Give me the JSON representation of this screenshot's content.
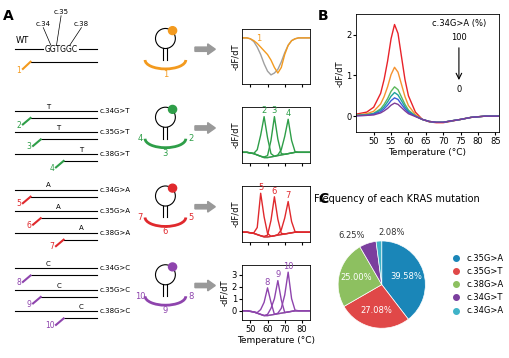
{
  "panel_labels": [
    "A",
    "B",
    "C"
  ],
  "diagram": {
    "wt": {
      "label": "WT",
      "positions": [
        "c.34",
        "c.35",
        "c.38"
      ],
      "sequence": "GGTGGC",
      "probe": "1",
      "color": "#f39a1e",
      "hairpin_labels": [
        "1"
      ]
    },
    "groups": [
      {
        "color": "#2e9e48",
        "base": "T",
        "rows": [
          {
            "label": "c.34G>T",
            "probe": "2"
          },
          {
            "label": "c.35G>T",
            "probe": "3"
          },
          {
            "label": "c.38G>T",
            "probe": "4"
          }
        ],
        "hairpin_labels": [
          "4",
          "3",
          "2"
        ]
      },
      {
        "color": "#e0292d",
        "base": "A",
        "rows": [
          {
            "label": "c.34G>A",
            "probe": "5"
          },
          {
            "label": "c.35G>A",
            "probe": "6"
          },
          {
            "label": "c.38G>A",
            "probe": "7"
          }
        ],
        "hairpin_labels": [
          "7",
          "6",
          "5"
        ]
      },
      {
        "color": "#8e44ad",
        "base": "C",
        "rows": [
          {
            "label": "c.34G>C",
            "probe": "8"
          },
          {
            "label": "c.35G>C",
            "probe": "9"
          },
          {
            "label": "c.38G>C",
            "probe": "10"
          }
        ],
        "hairpin_labels": [
          "10",
          "9",
          "8"
        ]
      }
    ]
  },
  "chart_data": [
    {
      "type": "line",
      "x": [
        45,
        48,
        50,
        52,
        54,
        56,
        58,
        60,
        62,
        64,
        66,
        68,
        70,
        72,
        74,
        76,
        78,
        80,
        82,
        85
      ],
      "xlim": [
        45,
        85
      ],
      "ylim": [
        -2.5,
        0.5
      ],
      "xticks": [
        50,
        60,
        70,
        80
      ],
      "ylabel": "-dF/dT",
      "tick_labels": false,
      "series": [
        {
          "color": "#a0a0a0",
          "values": [
            0,
            0,
            -0.05,
            -0.2,
            -0.5,
            -0.9,
            -1.4,
            -1.8,
            -2.0,
            -1.9,
            -1.7,
            -1.3,
            -0.8,
            -0.4,
            -0.15,
            -0.05,
            0,
            0,
            0,
            0
          ]
        },
        {
          "color": "#f39a1e",
          "values": [
            0,
            0,
            -0.05,
            -0.15,
            -0.3,
            -0.5,
            -0.7,
            -0.9,
            -1.2,
            -1.6,
            -1.9,
            -1.6,
            -0.9,
            -0.4,
            -0.15,
            -0.05,
            0,
            0,
            0,
            0
          ]
        }
      ],
      "annotations": [
        {
          "text": "1",
          "x": 55,
          "y": -0.3,
          "color": "#f39a1e"
        }
      ]
    },
    {
      "type": "line",
      "x": [
        45,
        48,
        50,
        52,
        54,
        56,
        58,
        60,
        62,
        64,
        66,
        68,
        70,
        72,
        74,
        76,
        78,
        80,
        82,
        85
      ],
      "xlim": [
        45,
        85
      ],
      "ylim": [
        -0.8,
        3.4
      ],
      "xticks": [
        50,
        60,
        70,
        80
      ],
      "ylabel": "-dF/dT",
      "tick_labels": false,
      "series": [
        {
          "color": "#a0a0a0",
          "values": [
            0,
            0,
            -0.05,
            -0.1,
            -0.2,
            -0.3,
            -0.4,
            -0.4,
            -0.35,
            -0.3,
            -0.25,
            -0.2,
            -0.15,
            -0.1,
            -0.05,
            0,
            0,
            0,
            0,
            0
          ]
        },
        {
          "color": "#2e9e48",
          "values": [
            0,
            0,
            -0.05,
            -0.08,
            0.2,
            1.3,
            2.7,
            1.1,
            -0.1,
            -0.3,
            -0.25,
            -0.2,
            -0.15,
            -0.1,
            -0.05,
            0,
            0,
            0,
            0,
            0
          ]
        },
        {
          "color": "#2e9e48",
          "values": [
            0,
            0,
            -0.05,
            -0.1,
            -0.2,
            -0.3,
            -0.35,
            -0.25,
            0.9,
            2.7,
            1.0,
            -0.1,
            -0.15,
            -0.1,
            -0.05,
            0,
            0,
            0,
            0,
            0
          ]
        },
        {
          "color": "#2e9e48",
          "values": [
            0,
            0,
            -0.05,
            -0.1,
            -0.2,
            -0.3,
            -0.4,
            -0.4,
            -0.35,
            -0.3,
            -0.2,
            0.2,
            1.2,
            2.5,
            0.9,
            0.05,
            0,
            0,
            0,
            0
          ]
        }
      ],
      "annotations": [
        {
          "text": "2",
          "x": 58,
          "y": 2.8,
          "color": "#2e9e48"
        },
        {
          "text": "3",
          "x": 64,
          "y": 2.8,
          "color": "#2e9e48"
        },
        {
          "text": "4",
          "x": 72,
          "y": 2.6,
          "color": "#2e9e48"
        }
      ]
    },
    {
      "type": "line",
      "x": [
        45,
        48,
        50,
        52,
        54,
        56,
        58,
        60,
        62,
        64,
        66,
        68,
        70,
        72,
        74,
        76,
        78,
        80,
        82,
        85
      ],
      "xlim": [
        45,
        85
      ],
      "ylim": [
        -0.8,
        3.9
      ],
      "xticks": [
        50,
        60,
        70,
        80
      ],
      "ylabel": "-dF/dT",
      "tick_labels": false,
      "series": [
        {
          "color": "#a0a0a0",
          "values": [
            0,
            0,
            -0.05,
            -0.1,
            -0.2,
            -0.3,
            -0.4,
            -0.4,
            -0.35,
            -0.3,
            -0.25,
            -0.2,
            -0.15,
            -0.1,
            -0.05,
            0,
            0,
            0,
            0,
            0
          ]
        },
        {
          "color": "#e0292d",
          "values": [
            0,
            0,
            -0.05,
            -0.05,
            0.4,
            3.3,
            1.3,
            -0.1,
            -0.35,
            -0.3,
            -0.25,
            -0.2,
            -0.15,
            -0.1,
            -0.05,
            0,
            0,
            0,
            0,
            0
          ]
        },
        {
          "color": "#e0292d",
          "values": [
            0,
            0,
            -0.05,
            -0.1,
            -0.2,
            -0.3,
            -0.35,
            -0.25,
            1.0,
            3.0,
            1.1,
            -0.1,
            -0.15,
            -0.1,
            -0.05,
            0,
            0,
            0,
            0,
            0
          ]
        },
        {
          "color": "#e0292d",
          "values": [
            0,
            0,
            -0.05,
            -0.1,
            -0.2,
            -0.3,
            -0.4,
            -0.4,
            -0.35,
            -0.3,
            -0.2,
            0.2,
            1.2,
            2.6,
            0.9,
            0.05,
            0,
            0,
            0,
            0
          ]
        }
      ],
      "annotations": [
        {
          "text": "5",
          "x": 56,
          "y": 3.4,
          "color": "#e0292d"
        },
        {
          "text": "6",
          "x": 64,
          "y": 3.1,
          "color": "#e0292d"
        },
        {
          "text": "7",
          "x": 72,
          "y": 2.7,
          "color": "#e0292d"
        }
      ]
    },
    {
      "type": "line",
      "x": [
        45,
        48,
        50,
        52,
        54,
        56,
        58,
        60,
        62,
        64,
        66,
        68,
        70,
        72,
        74,
        76,
        78,
        80,
        82,
        85
      ],
      "xlim": [
        45,
        85
      ],
      "ylim": [
        -0.8,
        3.8
      ],
      "xticks": [
        50,
        60,
        70,
        80
      ],
      "yticks": [
        0,
        1,
        2,
        3
      ],
      "xlabel": "Temperature (°C)",
      "ylabel": "-dF/dT",
      "tick_labels": true,
      "series": [
        {
          "color": "#a0a0a0",
          "values": [
            0,
            0,
            -0.05,
            -0.1,
            -0.2,
            -0.3,
            -0.4,
            -0.4,
            -0.35,
            -0.3,
            -0.25,
            -0.2,
            -0.15,
            -0.1,
            -0.05,
            0,
            0,
            0,
            0,
            0
          ]
        },
        {
          "color": "#8e44ad",
          "values": [
            0,
            0,
            -0.05,
            -0.1,
            -0.15,
            0.1,
            0.7,
            1.9,
            0.7,
            -0.3,
            -0.25,
            -0.2,
            -0.15,
            -0.1,
            -0.05,
            0,
            0,
            0,
            0,
            0
          ]
        },
        {
          "color": "#8e44ad",
          "values": [
            0,
            0,
            -0.05,
            -0.1,
            -0.2,
            -0.3,
            -0.4,
            -0.3,
            0.2,
            1.0,
            2.5,
            0.9,
            -0.15,
            -0.1,
            -0.05,
            0,
            0,
            0,
            0,
            0
          ]
        },
        {
          "color": "#8e44ad",
          "values": [
            0,
            0,
            -0.05,
            -0.1,
            -0.2,
            -0.3,
            -0.4,
            -0.4,
            -0.35,
            -0.3,
            -0.2,
            0.2,
            1.3,
            3.2,
            1.0,
            0.05,
            0,
            0,
            0,
            0
          ]
        }
      ],
      "annotations": [
        {
          "text": "8",
          "x": 60,
          "y": 2.0,
          "color": "#8e44ad"
        },
        {
          "text": "9",
          "x": 66,
          "y": 2.6,
          "color": "#8e44ad"
        },
        {
          "text": "10",
          "x": 72,
          "y": 3.3,
          "color": "#8e44ad"
        }
      ]
    },
    {
      "type": "line",
      "x": [
        45,
        48,
        50,
        52,
        53,
        54,
        55,
        56,
        57,
        58,
        59,
        60,
        62,
        64,
        66,
        68,
        70,
        72,
        75,
        78,
        82,
        86
      ],
      "xlim": [
        45,
        86
      ],
      "ylim": [
        -0.4,
        2.5
      ],
      "xticks": [
        50,
        55,
        60,
        65,
        70,
        75,
        80,
        85
      ],
      "yticks": [
        0,
        1,
        2
      ],
      "xlabel": "Temperature (°C)",
      "ylabel": "-dF/dT",
      "key": {
        "title": "c.34G>A (%)",
        "from": "100",
        "to": "0"
      },
      "series": [
        {
          "color": "#e8232a",
          "values": [
            0.05,
            0.1,
            0.22,
            0.56,
            0.9,
            1.35,
            1.9,
            2.25,
            2.03,
            1.46,
            0.9,
            0.5,
            0.1,
            -0.08,
            -0.14,
            -0.16,
            -0.16,
            -0.13,
            -0.08,
            -0.03,
            0,
            0
          ]
        },
        {
          "color": "#f5922f",
          "values": [
            0.03,
            0.06,
            0.12,
            0.3,
            0.48,
            0.72,
            1.02,
            1.2,
            1.08,
            0.78,
            0.48,
            0.26,
            0.04,
            -0.08,
            -0.13,
            -0.15,
            -0.15,
            -0.12,
            -0.08,
            -0.03,
            0,
            0
          ]
        },
        {
          "color": "#5cb85c",
          "values": [
            0.02,
            0.04,
            0.07,
            0.18,
            0.29,
            0.43,
            0.61,
            0.72,
            0.65,
            0.47,
            0.29,
            0.15,
            0.01,
            -0.08,
            -0.13,
            -0.15,
            -0.15,
            -0.12,
            -0.08,
            -0.03,
            0,
            0
          ]
        },
        {
          "color": "#20a39e",
          "values": [
            0.02,
            0.03,
            0.06,
            0.15,
            0.23,
            0.35,
            0.49,
            0.58,
            0.52,
            0.38,
            0.23,
            0.12,
            0.0,
            -0.08,
            -0.13,
            -0.15,
            -0.15,
            -0.12,
            -0.08,
            -0.03,
            0,
            0
          ]
        },
        {
          "color": "#3b5bdb",
          "values": [
            0.01,
            0.02,
            0.05,
            0.11,
            0.18,
            0.27,
            0.38,
            0.45,
            0.41,
            0.29,
            0.18,
            0.09,
            0.0,
            -0.08,
            -0.13,
            -0.15,
            -0.15,
            -0.12,
            -0.08,
            -0.03,
            0,
            0
          ]
        },
        {
          "color": "#7d3c98",
          "values": [
            0.01,
            0.02,
            0.03,
            0.08,
            0.13,
            0.19,
            0.27,
            0.32,
            0.29,
            0.21,
            0.13,
            0.06,
            -0.01,
            -0.08,
            -0.13,
            -0.15,
            -0.15,
            -0.12,
            -0.08,
            -0.03,
            0,
            0
          ]
        }
      ]
    },
    {
      "type": "pie",
      "title": "Frequency of each KRAS mutation",
      "categories": [
        "c.35G>A",
        "c.35G>T",
        "c.38G>A",
        "c.34G>T",
        "c.34G>A"
      ],
      "values": [
        39.58,
        27.08,
        25.0,
        6.25,
        2.08
      ],
      "value_labels": [
        "39.58%",
        "27.08%",
        "25.00%",
        "6.25%",
        "2.08%"
      ],
      "colors": [
        "#1a86b8",
        "#e04848",
        "#8dc060",
        "#7b3f9e",
        "#3fb3c8"
      ],
      "legend": "center left"
    }
  ]
}
